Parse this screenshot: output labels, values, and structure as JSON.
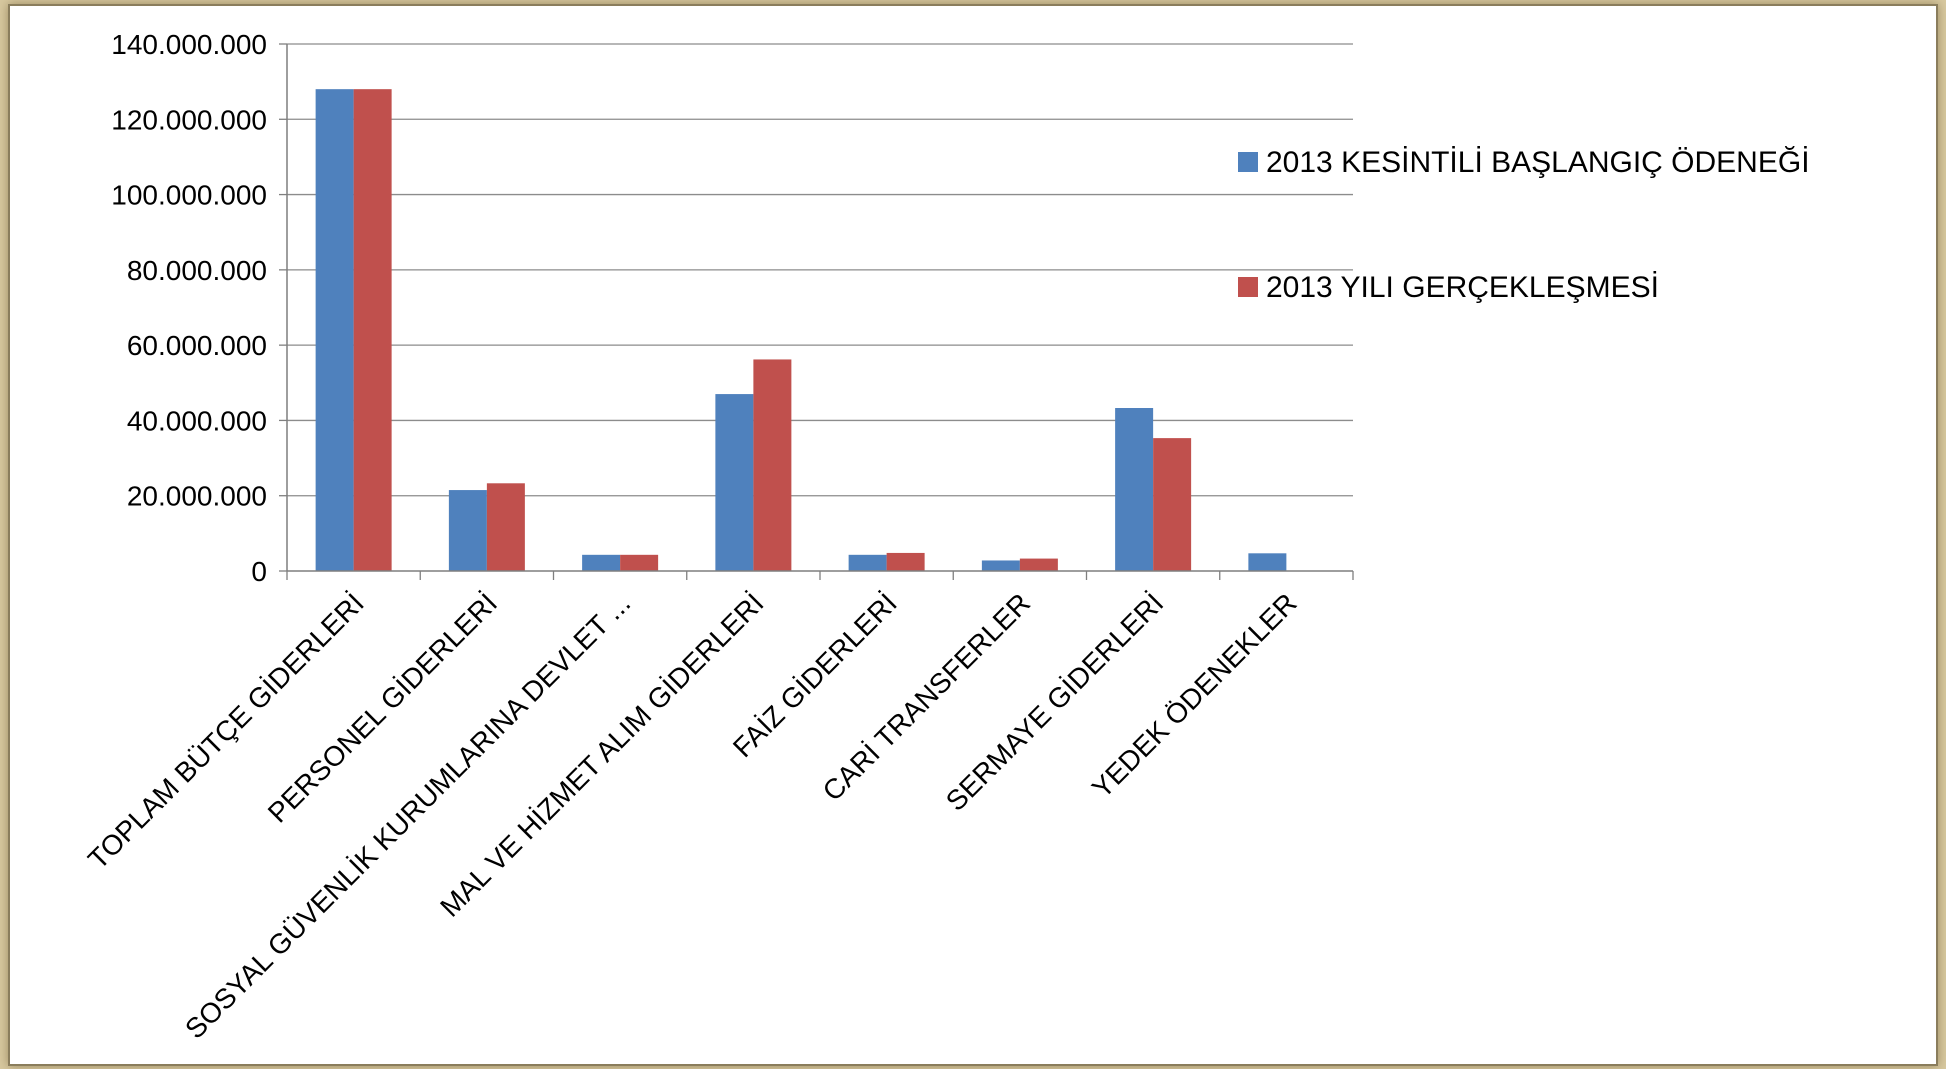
{
  "chart_data": {
    "type": "bar",
    "title": "",
    "xlabel": "",
    "ylabel": "",
    "ylim": [
      0,
      140000000
    ],
    "yticks": [
      "0",
      "20.000.000",
      "40.000.000",
      "60.000.000",
      "80.000.000",
      "100.000.000",
      "120.000.000",
      "140.000.000"
    ],
    "ytick_values": [
      0,
      20000000,
      40000000,
      60000000,
      80000000,
      100000000,
      120000000,
      140000000
    ],
    "grid": true,
    "legend_position": "right",
    "categories": [
      "TOPLAM BÜTÇE GİDERLERİ",
      "PERSONEL GİDERLERİ",
      "SOSYAL GÜVENLİK KURUMLARINA DEVLET ...",
      "MAL VE HİZMET ALIM GİDERLERİ",
      "FAİZ GİDERLERİ",
      "CARİ TRANSFERLER",
      "SERMAYE GİDERLERİ",
      "YEDEK ÖDENEKLER"
    ],
    "series": [
      {
        "name": "2013 KESİNTİLİ BAŞLANGIÇ ÖDENEĞİ",
        "color": "#4f81bd",
        "values": [
          128000000,
          21500000,
          4300000,
          47000000,
          4300000,
          2800000,
          43300000,
          4700000
        ]
      },
      {
        "name": "2013 YILI GERÇEKLEŞMESİ",
        "color": "#c0504d",
        "values": [
          128000000,
          23300000,
          4300000,
          56200000,
          4800000,
          3300000,
          35300000,
          0
        ]
      }
    ]
  }
}
